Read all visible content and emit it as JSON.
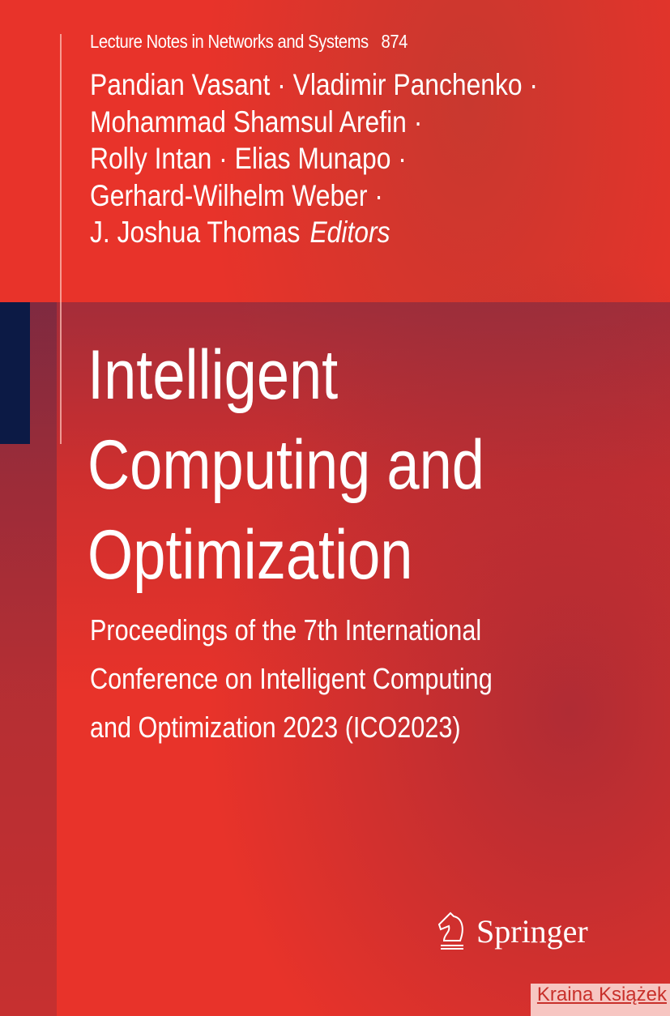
{
  "series": {
    "name": "Lecture Notes in Networks and Systems",
    "volume": "874"
  },
  "editors": {
    "lines": [
      "Pandian Vasant · Vladimir Panchenko ·",
      "Mohammad Shamsul Arefin ·",
      "Rolly Intan · Elias Munapo ·",
      "Gerhard-Wilhelm Weber ·",
      "J. Joshua Thomas"
    ],
    "role": "Editors"
  },
  "title": {
    "lines": [
      "Intelligent",
      "Computing and",
      "Optimization"
    ]
  },
  "subtitle": {
    "lines": [
      "Proceedings of the 7th International",
      "Conference on Intelligent Computing",
      "and Optimization 2023 (ICO2023)"
    ]
  },
  "publisher": {
    "name": "Springer",
    "icon": "knight-horse-icon"
  },
  "watermark": {
    "text": "Kraina Książek"
  },
  "colors": {
    "background": "#e8332a",
    "navy_block": "#0c1a45",
    "text": "#ffffff"
  }
}
